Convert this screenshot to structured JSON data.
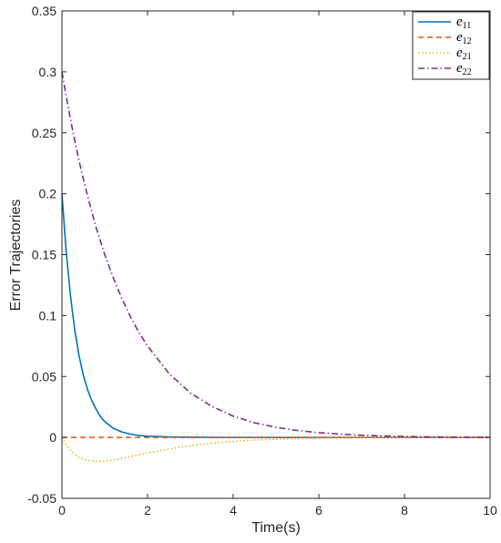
{
  "chart_data": {
    "type": "line",
    "xlabel": "Time(s)",
    "ylabel": "Error Trajectories",
    "xlim": [
      0,
      10
    ],
    "ylim": [
      -0.05,
      0.35
    ],
    "xticks": [
      "0",
      "2",
      "4",
      "6",
      "8",
      "10"
    ],
    "yticks": [
      "-0.05",
      "0",
      "0.05",
      "0.1",
      "0.15",
      "0.2",
      "0.25",
      "0.3",
      "0.35"
    ],
    "grid": false,
    "legend_position": "top-right",
    "x": [
      0,
      0.1,
      0.2,
      0.3,
      0.4,
      0.5,
      0.6,
      0.7,
      0.8,
      0.9,
      1.0,
      1.2,
      1.4,
      1.6,
      1.8,
      2.0,
      2.5,
      3.0,
      3.5,
      4.0,
      4.5,
      5.0,
      5.5,
      6.0,
      6.5,
      7.0,
      7.5,
      8.0,
      8.5,
      9.0,
      9.5,
      10.0
    ],
    "series": [
      {
        "name": "e11",
        "label_main": "e",
        "label_sub": "11",
        "color": "#0072BD",
        "dash": "solid",
        "values": [
          0.2,
          0.152,
          0.116,
          0.088,
          0.067,
          0.051,
          0.039,
          0.03,
          0.023,
          0.017,
          0.013,
          0.0075,
          0.0045,
          0.0027,
          0.0016,
          0.001,
          0.0004,
          0.0002,
          0.0001,
          0,
          0,
          0,
          0,
          0,
          0,
          0,
          0,
          0,
          0,
          0,
          0,
          0
        ]
      },
      {
        "name": "e12",
        "label_main": "e",
        "label_sub": "12",
        "color": "#D95319",
        "dash": "dashed",
        "values": [
          0,
          0,
          0,
          0,
          0,
          0,
          0,
          0,
          0,
          0,
          0,
          0,
          0,
          0,
          0,
          0,
          0,
          0,
          0,
          0,
          0,
          0,
          0,
          0,
          0,
          0,
          0,
          0,
          0,
          0,
          0,
          0
        ]
      },
      {
        "name": "e21",
        "label_main": "e",
        "label_sub": "21",
        "color": "#EDB120",
        "dash": "dotted",
        "values": [
          0,
          -0.006,
          -0.0105,
          -0.0138,
          -0.0162,
          -0.0178,
          -0.0188,
          -0.0194,
          -0.0197,
          -0.0197,
          -0.0194,
          -0.0185,
          -0.0172,
          -0.0158,
          -0.0143,
          -0.0128,
          -0.0095,
          -0.0068,
          -0.0048,
          -0.0033,
          -0.0022,
          -0.0015,
          -0.001,
          -0.0006,
          -0.0004,
          -0.0002,
          -0.0001,
          0,
          0,
          0,
          0,
          0
        ]
      },
      {
        "name": "e22",
        "label_main": "e",
        "label_sub": "22",
        "color": "#7E2F8E",
        "dash": "dashdot",
        "values": [
          0.3,
          0.28,
          0.261,
          0.2435,
          0.227,
          0.212,
          0.198,
          0.185,
          0.172,
          0.161,
          0.15,
          0.131,
          0.114,
          0.099,
          0.086,
          0.075,
          0.0525,
          0.0365,
          0.0255,
          0.0175,
          0.012,
          0.0083,
          0.0057,
          0.0039,
          0.0027,
          0.0018,
          0.0012,
          0.0008,
          0.0005,
          0.0003,
          0.0002,
          0.0001
        ]
      }
    ]
  }
}
